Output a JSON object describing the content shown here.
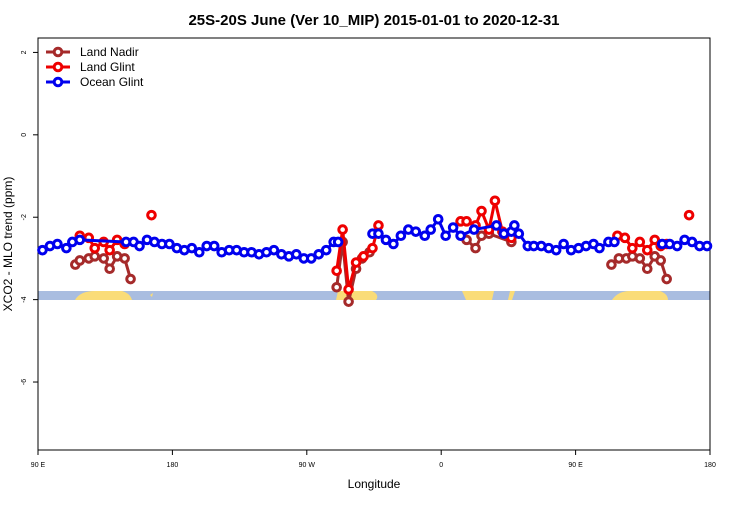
{
  "chart_data": {
    "type": "line",
    "title": "25S-20S June (Ver 10_MIP)   2015-01-01 to 2020-12-31",
    "x_label": "Longitude",
    "y_label": "XCO2 - MLO trend (ppm)",
    "xlim": [
      90,
      540
    ],
    "xticks": [
      {
        "value": 90,
        "label": "90 E"
      },
      180,
      {
        "value": 270,
        "label": "90 W"
      },
      {
        "value": 360,
        "label": "0"
      },
      {
        "value": 450,
        "label": "90 E"
      },
      {
        "value": 540,
        "label": "180"
      }
    ],
    "ylim": [
      -7.65,
      2.35
    ],
    "yticks": [
      2,
      0,
      -2,
      -4,
      -6
    ],
    "legend": "top-left",
    "series": [
      {
        "name": "Land Nadir",
        "color": "#a52a2a",
        "x": [
          115,
          118,
          124,
          128,
          134,
          138,
          143,
          148,
          152,
          null,
          290,
          294,
          298,
          303,
          307,
          312,
          null,
          377,
          383,
          387,
          392,
          407,
          null,
          474,
          479,
          484,
          488,
          493,
          498,
          503,
          507,
          511
        ],
        "values": [
          -3.15,
          -3.05,
          -3.0,
          -2.95,
          -3.0,
          -3.25,
          -2.95,
          -3.0,
          -3.5,
          null,
          -3.7,
          -2.6,
          -4.05,
          -3.25,
          -3.0,
          -2.85,
          null,
          -2.55,
          -2.75,
          -2.45,
          -2.4,
          -2.6,
          null,
          -3.15,
          -3.0,
          -3.0,
          -2.95,
          -3.0,
          -3.25,
          -2.95,
          -3.05,
          -3.5
        ]
      },
      {
        "name": "Land Glint",
        "color": "#ee0000",
        "x": [
          118,
          124,
          128,
          134,
          138,
          143,
          148,
          null,
          166,
          null,
          290,
          294,
          298,
          303,
          308,
          314,
          318,
          null,
          373,
          377,
          383,
          387,
          392,
          396,
          401,
          407,
          null,
          478,
          483,
          488,
          493,
          498,
          503,
          507,
          511,
          null,
          526
        ],
        "values": [
          -2.45,
          -2.5,
          -2.75,
          -2.6,
          -2.8,
          -2.55,
          -2.65,
          null,
          -1.95,
          null,
          -3.3,
          -2.3,
          -3.75,
          -3.1,
          -2.95,
          -2.75,
          -2.2,
          null,
          -2.1,
          -2.1,
          -2.2,
          -1.85,
          -2.3,
          -1.6,
          -2.35,
          -2.5,
          null,
          -2.45,
          -2.5,
          -2.75,
          -2.6,
          -2.8,
          -2.55,
          -2.7,
          -2.65,
          null,
          -1.95
        ]
      },
      {
        "name": "Ocean Glint",
        "color": "#0000ee",
        "x": [
          93,
          98,
          103,
          109,
          113,
          118,
          149,
          154,
          158,
          163,
          168,
          173,
          178,
          183,
          188,
          193,
          198,
          203,
          208,
          213,
          218,
          223,
          228,
          233,
          238,
          243,
          248,
          253,
          258,
          263,
          268,
          273,
          278,
          283,
          288,
          291,
          null,
          314,
          318,
          323,
          328,
          333,
          338,
          343,
          349,
          353,
          358,
          363,
          368,
          373,
          382,
          397,
          402,
          407,
          409,
          412,
          418,
          422,
          427,
          432,
          437,
          442,
          447,
          452,
          457,
          462,
          466,
          472,
          476,
          null,
          508,
          513,
          518,
          523,
          528,
          533,
          538
        ],
        "values": [
          -2.8,
          -2.7,
          -2.65,
          -2.75,
          -2.6,
          -2.55,
          -2.6,
          -2.6,
          -2.7,
          -2.55,
          -2.6,
          -2.65,
          -2.65,
          -2.75,
          -2.8,
          -2.75,
          -2.85,
          -2.7,
          -2.7,
          -2.85,
          -2.8,
          -2.8,
          -2.85,
          -2.85,
          -2.9,
          -2.85,
          -2.8,
          -2.9,
          -2.95,
          -2.9,
          -3.0,
          -3.0,
          -2.9,
          -2.8,
          -2.6,
          -2.6,
          null,
          -2.4,
          -2.4,
          -2.55,
          -2.65,
          -2.45,
          -2.3,
          -2.35,
          -2.45,
          -2.3,
          -2.05,
          -2.45,
          -2.25,
          -2.45,
          -2.3,
          -2.2,
          -2.4,
          -2.35,
          -2.2,
          -2.4,
          -2.7,
          -2.7,
          -2.7,
          -2.75,
          -2.8,
          -2.65,
          -2.8,
          -2.75,
          -2.7,
          -2.65,
          -2.75,
          -2.6,
          -2.6,
          null,
          -2.65,
          -2.65,
          -2.7,
          -2.55,
          -2.6,
          -2.7,
          -2.7
        ]
      }
    ]
  }
}
